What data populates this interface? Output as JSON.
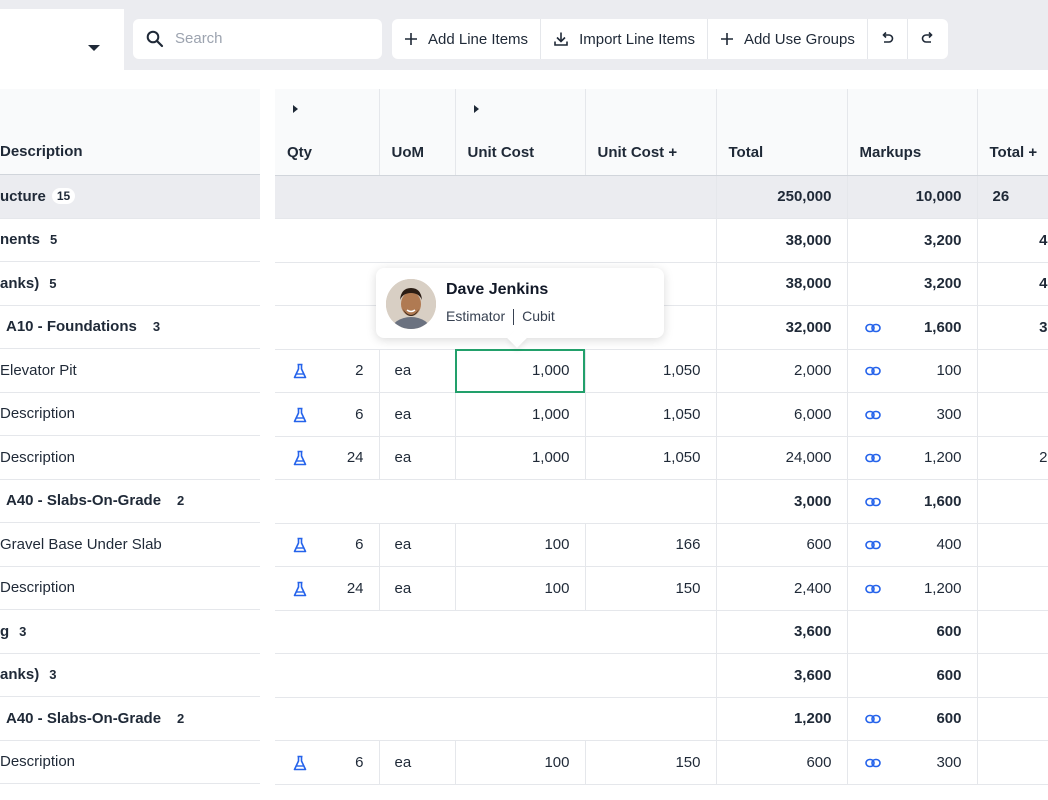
{
  "toolbar": {
    "search_placeholder": "Search",
    "add_line_items": "Add Line Items",
    "import_line_items": "Import Line Items",
    "add_use_groups": "Add Use Groups"
  },
  "columns": {
    "description": "Description",
    "qty": "Qty",
    "uom": "UoM",
    "unit_cost": "Unit Cost",
    "unit_cost_plus": "Unit Cost +",
    "total": "Total",
    "markups": "Markups",
    "total_plus": "Total +"
  },
  "left_rows": [
    {
      "label": "ucture",
      "count": "15"
    },
    {
      "label": "nents",
      "count": "5"
    },
    {
      "label": "anks)",
      "count": "5"
    },
    {
      "label": "A10 - Foundations",
      "count": "3"
    },
    {
      "label": "Elevator Pit"
    },
    {
      "label": "Description"
    },
    {
      "label": "Description"
    },
    {
      "label": "A40 - Slabs-On-Grade",
      "count": "2"
    },
    {
      "label": "Gravel Base Under Slab"
    },
    {
      "label": "Description"
    },
    {
      "label": "g",
      "count": "3"
    },
    {
      "label": "anks)",
      "count": "3"
    },
    {
      "label": "A40 - Slabs-On-Grade",
      "count": "2"
    },
    {
      "label": "Description"
    },
    {
      "label": ""
    }
  ],
  "rows": [
    {
      "total": "250,000",
      "markups": "10,000",
      "total_plus": "26"
    },
    {
      "total": "38,000",
      "markups": "3,200",
      "total_plus": "4"
    },
    {
      "total": "38,000",
      "markups": "3,200",
      "total_plus": "4"
    },
    {
      "total": "32,000",
      "markups": "1,600",
      "total_plus": "3"
    },
    {
      "qty": "2",
      "uom": "ea",
      "unit_cost": "1,000",
      "unit_cost_plus": "1,050",
      "total": "2,000",
      "markups": "100",
      "total_plus": ""
    },
    {
      "qty": "6",
      "uom": "ea",
      "unit_cost": "1,000",
      "unit_cost_plus": "1,050",
      "total": "6,000",
      "markups": "300",
      "total_plus": ""
    },
    {
      "qty": "24",
      "uom": "ea",
      "unit_cost": "1,000",
      "unit_cost_plus": "1,050",
      "total": "24,000",
      "markups": "1,200",
      "total_plus": "2"
    },
    {
      "total": "3,000",
      "markups": "1,600",
      "total_plus": ""
    },
    {
      "qty": "6",
      "uom": "ea",
      "unit_cost": "100",
      "unit_cost_plus": "166",
      "total": "600",
      "markups": "400",
      "total_plus": ""
    },
    {
      "qty": "24",
      "uom": "ea",
      "unit_cost": "100",
      "unit_cost_plus": "150",
      "total": "2,400",
      "markups": "1,200",
      "total_plus": ""
    },
    {
      "total": "3,600",
      "markups": "600",
      "total_plus": ""
    },
    {
      "total": "3,600",
      "markups": "600",
      "total_plus": ""
    },
    {
      "total": "1,200",
      "markups": "600",
      "total_plus": ""
    },
    {
      "qty": "6",
      "uom": "ea",
      "unit_cost": "100",
      "unit_cost_plus": "150",
      "total": "600",
      "markups": "300",
      "total_plus": ""
    }
  ],
  "tooltip": {
    "name": "Dave Jenkins",
    "role": "Estimator",
    "company": "Cubit"
  },
  "colors": {
    "accent_blue": "#2563eb",
    "selection_green": "#22a06b",
    "group_row": "#ebecf0"
  }
}
